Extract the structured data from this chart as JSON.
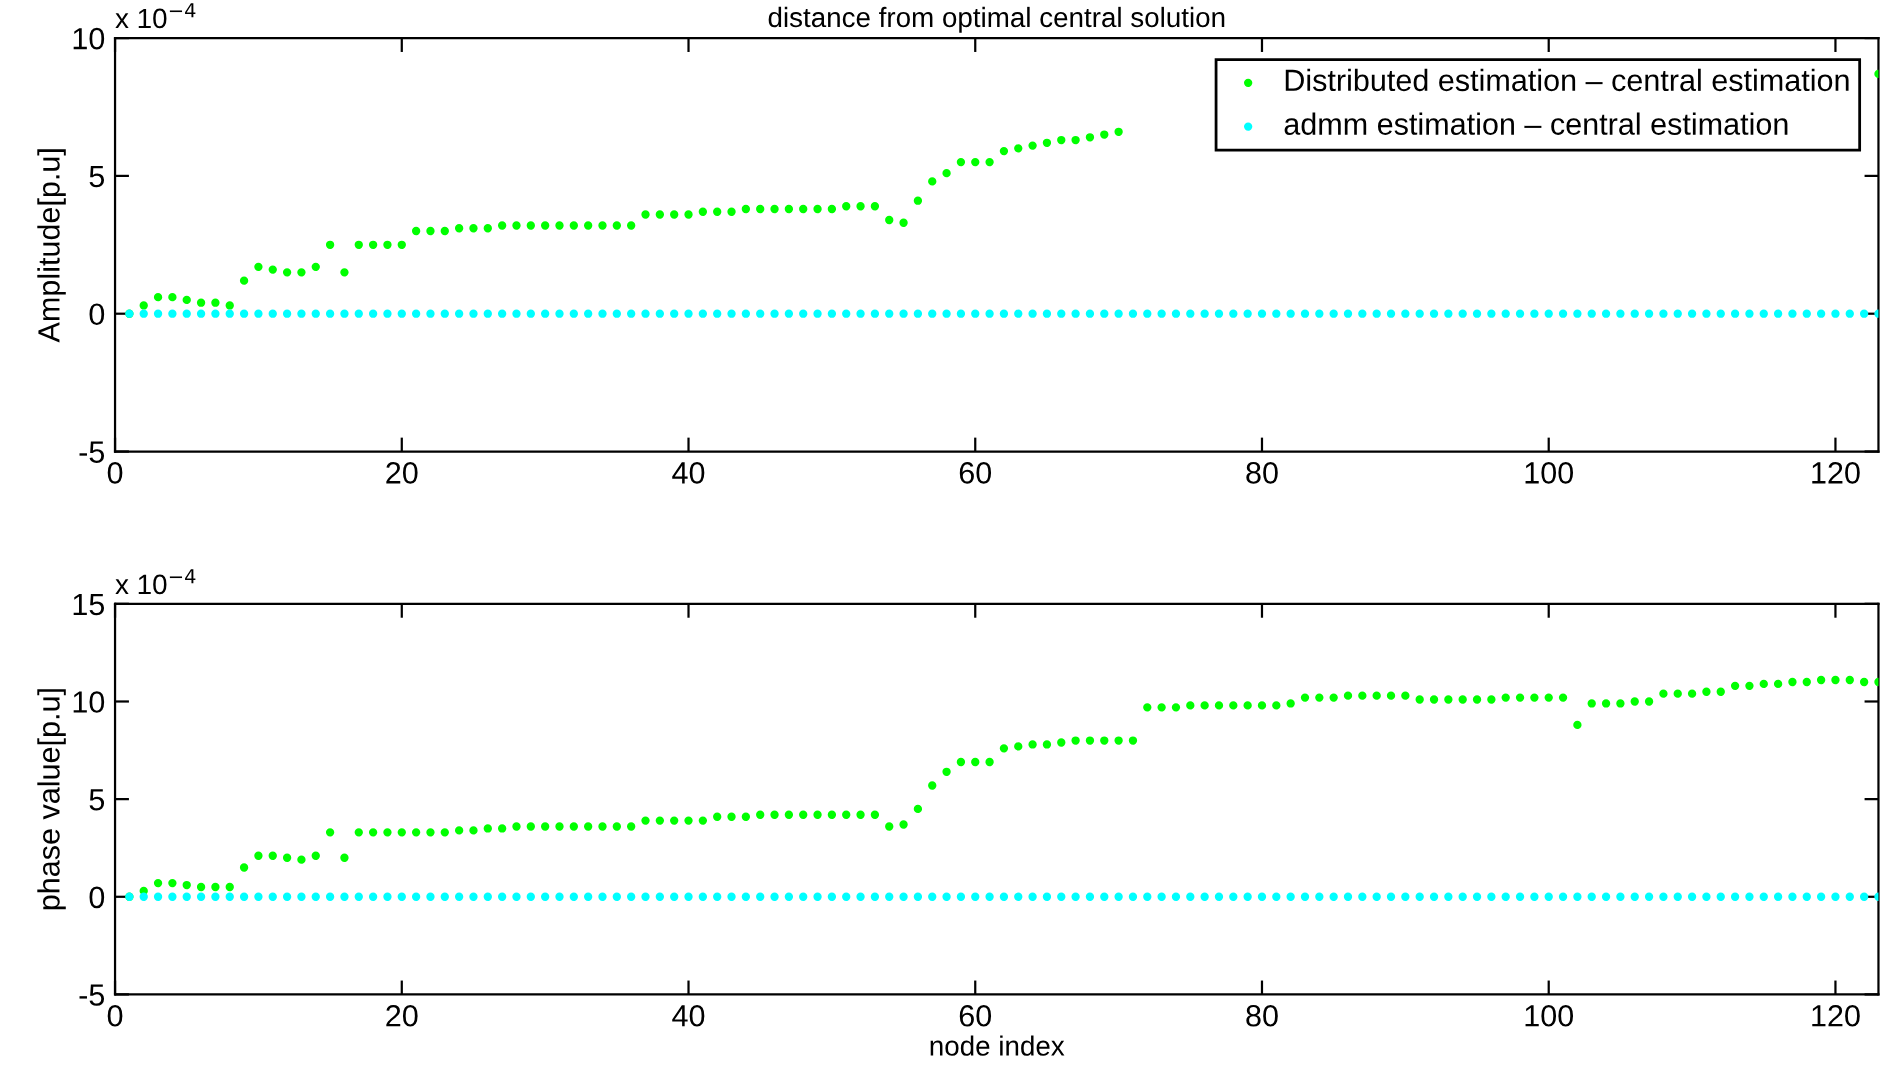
{
  "chart_data": [
    {
      "type": "scatter",
      "title": "distance from optimal central solution",
      "ylabel": "Amplitude[p.u]",
      "annotations": [
        "x 10$^{−4}$"
      ],
      "x": [
        1,
        2,
        3,
        4,
        5,
        6,
        7,
        8,
        9,
        10,
        11,
        12,
        13,
        14,
        15,
        16,
        17,
        18,
        19,
        20,
        21,
        22,
        23,
        24,
        25,
        26,
        27,
        28,
        29,
        30,
        31,
        32,
        33,
        34,
        35,
        36,
        37,
        38,
        39,
        40,
        41,
        42,
        43,
        44,
        45,
        46,
        47,
        48,
        49,
        50,
        51,
        52,
        53,
        54,
        55,
        56,
        57,
        58,
        59,
        60,
        61,
        62,
        63,
        64,
        65,
        66,
        67,
        68,
        69,
        70,
        71,
        72,
        73,
        74,
        75,
        76,
        77,
        78,
        79,
        80,
        81,
        82,
        83,
        84,
        85,
        86,
        87,
        88,
        89,
        90,
        91,
        92,
        93,
        94,
        95,
        96,
        97,
        98,
        99,
        100,
        101,
        102,
        103,
        104,
        105,
        106,
        107,
        108,
        109,
        110,
        111,
        112,
        113,
        114,
        115,
        116,
        117,
        118,
        119,
        120,
        121,
        122,
        123
      ],
      "series": [
        {
          "name": "Distributed estimation – central estimation",
          "color": "#00ff00",
          "values": [
            0,
            0.3,
            0.6,
            0.6,
            0.5,
            0.4,
            0.4,
            0.3,
            1.2,
            1.7,
            1.6,
            1.5,
            1.5,
            1.7,
            2.5,
            1.5,
            2.5,
            2.5,
            2.5,
            2.5,
            3.0,
            3.0,
            3.0,
            3.1,
            3.1,
            3.1,
            3.2,
            3.2,
            3.2,
            3.2,
            3.2,
            3.2,
            3.2,
            3.2,
            3.2,
            3.2,
            3.6,
            3.6,
            3.6,
            3.6,
            3.7,
            3.7,
            3.7,
            3.8,
            3.8,
            3.8,
            3.8,
            3.8,
            3.8,
            3.8,
            3.9,
            3.9,
            3.9,
            3.4,
            3.3,
            4.1,
            4.8,
            5.1,
            5.5,
            5.5,
            5.5,
            5.9,
            6.0,
            6.1,
            6.2,
            6.3,
            6.3,
            6.4,
            6.5,
            6.6,
            null,
            null,
            null,
            null,
            null,
            null,
            null,
            null,
            null,
            null,
            null,
            null,
            null,
            null,
            null,
            null,
            null,
            null,
            null,
            null,
            null,
            null,
            null,
            null,
            null,
            null,
            null,
            null,
            null,
            null,
            null,
            null,
            null,
            null,
            null,
            null,
            null,
            null,
            null,
            null,
            null,
            null,
            null,
            null,
            null,
            null,
            null,
            null,
            null,
            null,
            null,
            null,
            8.7
          ]
        },
        {
          "name": "admm estimation – central estimation",
          "color": "#00ffff",
          "values": [
            0,
            0,
            0,
            0,
            0,
            0,
            0,
            0,
            0,
            0,
            0,
            0,
            0,
            0,
            0,
            0,
            0,
            0,
            0,
            0,
            0,
            0,
            0,
            0,
            0,
            0,
            0,
            0,
            0,
            0,
            0,
            0,
            0,
            0,
            0,
            0,
            0,
            0,
            0,
            0,
            0,
            0,
            0,
            0,
            0,
            0,
            0,
            0,
            0,
            0,
            0,
            0,
            0,
            0,
            0,
            0,
            0,
            0,
            0,
            0,
            0,
            0,
            0,
            0,
            0,
            0,
            0,
            0,
            0,
            0,
            0,
            0,
            0,
            0,
            0,
            0,
            0,
            0,
            0,
            0,
            0,
            0,
            0,
            0,
            0,
            0,
            0,
            0,
            0,
            0,
            0,
            0,
            0,
            0,
            0,
            0,
            0,
            0,
            0,
            0,
            0,
            0,
            0,
            0,
            0,
            0,
            0,
            0,
            0,
            0,
            0,
            0,
            0,
            0,
            0,
            0,
            0,
            0,
            0,
            0,
            0,
            0,
            0
          ]
        }
      ],
      "xlim": [
        0,
        123
      ],
      "xticks": [
        0,
        20,
        40,
        60,
        80,
        100,
        120
      ],
      "ylim": [
        -5,
        10
      ],
      "yticks": [
        -5,
        0,
        5,
        10
      ],
      "marker": "circle",
      "legend": "top right",
      "grid": false
    },
    {
      "type": "scatter",
      "xlabel": "node index",
      "ylabel": "phase value[p.u]",
      "annotations": [
        "x 10$^{−4}$"
      ],
      "x": [
        1,
        2,
        3,
        4,
        5,
        6,
        7,
        8,
        9,
        10,
        11,
        12,
        13,
        14,
        15,
        16,
        17,
        18,
        19,
        20,
        21,
        22,
        23,
        24,
        25,
        26,
        27,
        28,
        29,
        30,
        31,
        32,
        33,
        34,
        35,
        36,
        37,
        38,
        39,
        40,
        41,
        42,
        43,
        44,
        45,
        46,
        47,
        48,
        49,
        50,
        51,
        52,
        53,
        54,
        55,
        56,
        57,
        58,
        59,
        60,
        61,
        62,
        63,
        64,
        65,
        66,
        67,
        68,
        69,
        70,
        71,
        72,
        73,
        74,
        75,
        76,
        77,
        78,
        79,
        80,
        81,
        82,
        83,
        84,
        85,
        86,
        87,
        88,
        89,
        90,
        91,
        92,
        93,
        94,
        95,
        96,
        97,
        98,
        99,
        100,
        101,
        102,
        103,
        104,
        105,
        106,
        107,
        108,
        109,
        110,
        111,
        112,
        113,
        114,
        115,
        116,
        117,
        118,
        119,
        120,
        121,
        122,
        123
      ],
      "series": [
        {
          "color": "#00ff00",
          "values": [
            0,
            0.3,
            0.7,
            0.7,
            0.6,
            0.5,
            0.5,
            0.5,
            1.5,
            2.1,
            2.1,
            2.0,
            1.9,
            2.1,
            3.3,
            2.0,
            3.3,
            3.3,
            3.3,
            3.3,
            3.3,
            3.3,
            3.3,
            3.4,
            3.4,
            3.5,
            3.5,
            3.6,
            3.6,
            3.6,
            3.6,
            3.6,
            3.6,
            3.6,
            3.6,
            3.6,
            3.9,
            3.9,
            3.9,
            3.9,
            3.9,
            4.1,
            4.1,
            4.1,
            4.2,
            4.2,
            4.2,
            4.2,
            4.2,
            4.2,
            4.2,
            4.2,
            4.2,
            3.6,
            3.7,
            4.5,
            5.7,
            6.4,
            6.9,
            6.9,
            6.9,
            7.6,
            7.7,
            7.8,
            7.8,
            7.9,
            8.0,
            8.0,
            8.0,
            8.0,
            8.0,
            9.7,
            9.7,
            9.7,
            9.8,
            9.8,
            9.8,
            9.8,
            9.8,
            9.8,
            9.8,
            9.9,
            10.2,
            10.2,
            10.2,
            10.3,
            10.3,
            10.3,
            10.3,
            10.3,
            10.1,
            10.1,
            10.1,
            10.1,
            10.1,
            10.1,
            10.2,
            10.2,
            10.2,
            10.2,
            10.2,
            8.8,
            9.9,
            9.9,
            9.9,
            10.0,
            10.0,
            10.4,
            10.4,
            10.4,
            10.5,
            10.5,
            10.8,
            10.8,
            10.9,
            10.9,
            11.0,
            11.0,
            11.1,
            11.1,
            11.1,
            11.0,
            11.0
          ]
        },
        {
          "color": "#00ffff",
          "values": [
            0,
            0,
            0,
            0,
            0,
            0,
            0,
            0,
            0,
            0,
            0,
            0,
            0,
            0,
            0,
            0,
            0,
            0,
            0,
            0,
            0,
            0,
            0,
            0,
            0,
            0,
            0,
            0,
            0,
            0,
            0,
            0,
            0,
            0,
            0,
            0,
            0,
            0,
            0,
            0,
            0,
            0,
            0,
            0,
            0,
            0,
            0,
            0,
            0,
            0,
            0,
            0,
            0,
            0,
            0,
            0,
            0,
            0,
            0,
            0,
            0,
            0,
            0,
            0,
            0,
            0,
            0,
            0,
            0,
            0,
            0,
            0,
            0,
            0,
            0,
            0,
            0,
            0,
            0,
            0,
            0,
            0,
            0,
            0,
            0,
            0,
            0,
            0,
            0,
            0,
            0,
            0,
            0,
            0,
            0,
            0,
            0,
            0,
            0,
            0,
            0,
            0,
            0,
            0,
            0,
            0,
            0,
            0,
            0,
            0,
            0,
            0,
            0,
            0,
            0,
            0,
            0,
            0,
            0,
            0,
            0,
            0,
            0
          ]
        }
      ],
      "xlim": [
        0,
        123
      ],
      "xticks": [
        0,
        20,
        40,
        60,
        80,
        100,
        120
      ],
      "ylim": [
        -5,
        15
      ],
      "yticks": [
        -5,
        0,
        5,
        10,
        15
      ],
      "marker": "circle",
      "grid": false
    }
  ]
}
